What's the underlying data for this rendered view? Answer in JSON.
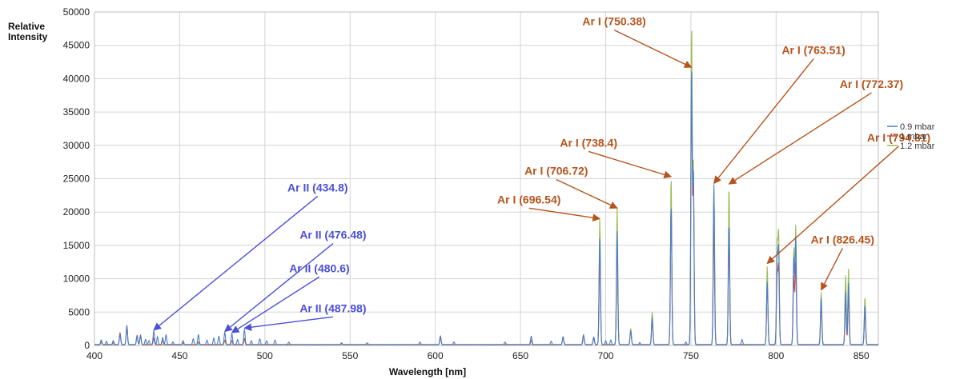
{
  "chart_data": {
    "type": "line",
    "xlabel": "Wavelength [nm]",
    "ylabel": "Relative Intensity",
    "xlim": [
      400,
      860
    ],
    "ylim": [
      0,
      50000
    ],
    "x_ticks": [
      "400",
      "450",
      "500",
      "550",
      "600",
      "650",
      "700",
      "750",
      "800",
      "850"
    ],
    "y_ticks": [
      "0",
      "5000",
      "10000",
      "15000",
      "20000",
      "25000",
      "30000",
      "35000",
      "40000",
      "45000",
      "50000"
    ],
    "grid": true,
    "legend_position": "right",
    "series": [
      {
        "name": "0.9 mbar",
        "color": "#4a7fc8",
        "peaks": [
          [
            404,
            700
          ],
          [
            407,
            500
          ],
          [
            411,
            600
          ],
          [
            415,
            1500
          ],
          [
            419,
            2800
          ],
          [
            425,
            1300
          ],
          [
            427,
            1500
          ],
          [
            430,
            800
          ],
          [
            432,
            600
          ],
          [
            434.8,
            2100
          ],
          [
            437,
            1200
          ],
          [
            440,
            1100
          ],
          [
            442,
            1500
          ],
          [
            446,
            400
          ],
          [
            452,
            600
          ],
          [
            458,
            900
          ],
          [
            461,
            1500
          ],
          [
            466,
            700
          ],
          [
            470,
            1000
          ],
          [
            473,
            1300
          ],
          [
            476.48,
            1900
          ],
          [
            480.6,
            1700
          ],
          [
            484,
            800
          ],
          [
            487.98,
            2300
          ],
          [
            492,
            600
          ],
          [
            497,
            900
          ],
          [
            501,
            600
          ],
          [
            506,
            700
          ],
          [
            514,
            400
          ],
          [
            545,
            300
          ],
          [
            560,
            300
          ],
          [
            591,
            400
          ],
          [
            603,
            1200
          ],
          [
            611,
            400
          ],
          [
            641,
            400
          ],
          [
            656.3,
            1300
          ],
          [
            668,
            500
          ],
          [
            675,
            1200
          ],
          [
            687,
            1500
          ],
          [
            693,
            1200
          ],
          [
            696.54,
            16000
          ],
          [
            700,
            600
          ],
          [
            703,
            700
          ],
          [
            706.72,
            17000
          ],
          [
            714.7,
            2100
          ],
          [
            720,
            300
          ],
          [
            727.3,
            4100
          ],
          [
            738.4,
            21000
          ],
          [
            747,
            400
          ],
          [
            750.38,
            41700
          ],
          [
            751.47,
            25500
          ],
          [
            763.51,
            24000
          ],
          [
            772.37,
            18400
          ],
          [
            780,
            800
          ],
          [
            794.81,
            9500
          ],
          [
            800.6,
            12600
          ],
          [
            801.5,
            14200
          ],
          [
            810.4,
            13000
          ],
          [
            811.53,
            16000
          ],
          [
            826.45,
            7000
          ],
          [
            840.8,
            8000
          ],
          [
            842.5,
            9200
          ],
          [
            852.14,
            6000
          ]
        ]
      },
      {
        "name": "1 mbar",
        "color": "#c0504d",
        "peaks": [
          [
            404,
            400
          ],
          [
            411,
            300
          ],
          [
            415,
            1800
          ],
          [
            419,
            2900
          ],
          [
            425,
            1400
          ],
          [
            427,
            1300
          ],
          [
            434.8,
            1000
          ],
          [
            440,
            600
          ],
          [
            452,
            300
          ],
          [
            461,
            400
          ],
          [
            476.48,
            700
          ],
          [
            480.6,
            600
          ],
          [
            487.98,
            900
          ],
          [
            545,
            200
          ],
          [
            603,
            1300
          ],
          [
            656.3,
            600
          ],
          [
            675,
            1100
          ],
          [
            687,
            1300
          ],
          [
            693,
            1000
          ],
          [
            696.54,
            14700
          ],
          [
            706.72,
            15200
          ],
          [
            714.7,
            2000
          ],
          [
            727.3,
            3800
          ],
          [
            738.4,
            20800
          ],
          [
            750.38,
            38500
          ],
          [
            751.47,
            24000
          ],
          [
            763.51,
            18000
          ],
          [
            772.37,
            17700
          ],
          [
            794.81,
            9200
          ],
          [
            800.6,
            10100
          ],
          [
            801.5,
            11600
          ],
          [
            810.4,
            10300
          ],
          [
            811.53,
            12100
          ],
          [
            826.45,
            6200
          ],
          [
            840.8,
            6500
          ],
          [
            842.5,
            7200
          ],
          [
            852.14,
            5100
          ]
        ]
      },
      {
        "name": "1.2 mbar",
        "color": "#9bbb59",
        "peaks": [
          [
            404,
            300
          ],
          [
            415,
            1600
          ],
          [
            419,
            2600
          ],
          [
            425,
            1300
          ],
          [
            427,
            1200
          ],
          [
            434.8,
            900
          ],
          [
            476.48,
            600
          ],
          [
            487.98,
            800
          ],
          [
            603,
            1100
          ],
          [
            675,
            1200
          ],
          [
            687,
            1400
          ],
          [
            693,
            1100
          ],
          [
            696.54,
            18800
          ],
          [
            706.72,
            20600
          ],
          [
            714.7,
            2400
          ],
          [
            727.3,
            4900
          ],
          [
            738.4,
            25300
          ],
          [
            750.38,
            48000
          ],
          [
            751.47,
            27000
          ],
          [
            763.51,
            23500
          ],
          [
            772.37,
            24000
          ],
          [
            794.81,
            11800
          ],
          [
            800.6,
            14500
          ],
          [
            801.5,
            16300
          ],
          [
            810.4,
            14500
          ],
          [
            811.53,
            17700
          ],
          [
            826.45,
            7900
          ],
          [
            840.8,
            10400
          ],
          [
            842.5,
            11300
          ],
          [
            852.14,
            7200
          ]
        ]
      }
    ],
    "annotations": [
      {
        "text": "Ar I (750.38)",
        "color": "#b5541c",
        "x": 750.38,
        "y": 41700,
        "label_x": 705,
        "label_y": 48000
      },
      {
        "text": "Ar I (763.51)",
        "color": "#b5541c",
        "x": 763.51,
        "y": 24300,
        "label_x": 822,
        "label_y": 43700
      },
      {
        "text": "Ar I (772.37)",
        "color": "#b5541c",
        "x": 772.37,
        "y": 24200,
        "label_x": 856,
        "label_y": 38600
      },
      {
        "text": "Ar I (794.81)",
        "color": "#b5541c",
        "x": 794.81,
        "y": 12300,
        "label_x": 872,
        "label_y": 30600
      },
      {
        "text": "Ar I (738.4)",
        "color": "#b5541c",
        "x": 738.4,
        "y": 25300,
        "label_x": 690,
        "label_y": 29800
      },
      {
        "text": "Ar I (706.72)",
        "color": "#b5541c",
        "x": 706.72,
        "y": 20600,
        "label_x": 671,
        "label_y": 25600
      },
      {
        "text": "Ar I (696.54)",
        "color": "#b5541c",
        "x": 696.54,
        "y": 19000,
        "label_x": 655,
        "label_y": 21300
      },
      {
        "text": "Ar I (826.45)",
        "color": "#b5541c",
        "x": 826.45,
        "y": 8300,
        "label_x": 839,
        "label_y": 15300
      },
      {
        "text": "Ar II (434.8)",
        "color": "#4b4fd6",
        "x": 434.8,
        "y": 2300,
        "label_x": 531,
        "label_y": 23100
      },
      {
        "text": "Ar II (476.48)",
        "color": "#4b4fd6",
        "x": 476.48,
        "y": 2100,
        "label_x": 540,
        "label_y": 16000
      },
      {
        "text": "Ar II (480.6)",
        "color": "#4b4fd6",
        "x": 480.6,
        "y": 1900,
        "label_x": 532,
        "label_y": 11000
      },
      {
        "text": "Ar II (487.98)",
        "color": "#4b4fd6",
        "x": 487.98,
        "y": 2600,
        "label_x": 540,
        "label_y": 5000
      }
    ]
  }
}
